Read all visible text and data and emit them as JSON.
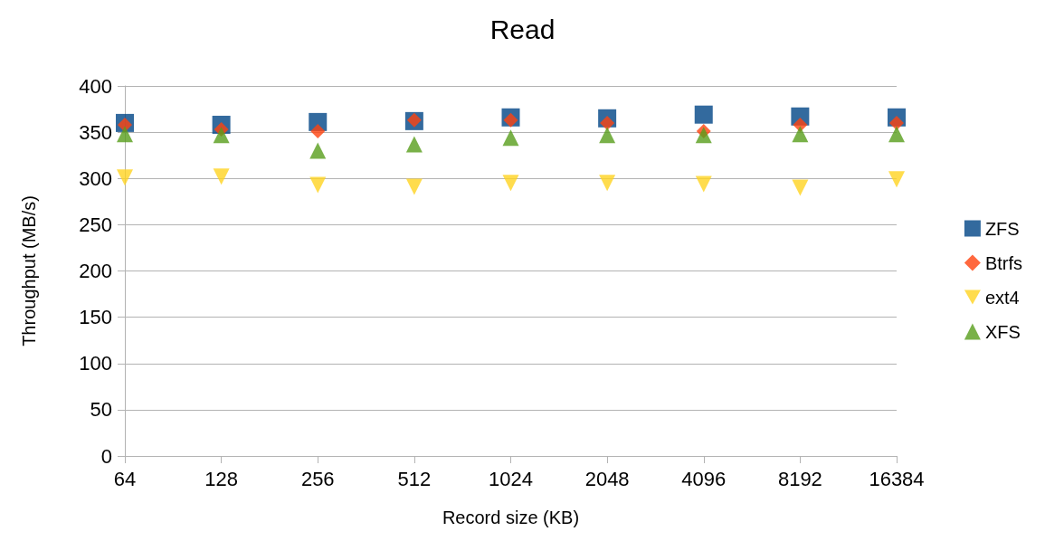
{
  "chart_data": {
    "type": "scatter",
    "title": "Read",
    "xlabel": "Record size (KB)",
    "ylabel": "Throughput (MB/s)",
    "categories": [
      "64",
      "128",
      "256",
      "512",
      "1024",
      "2048",
      "4096",
      "8192",
      "16384"
    ],
    "series": [
      {
        "name": "ZFS",
        "color": "#004586",
        "marker": "square",
        "values": [
          360,
          358,
          361,
          362,
          366,
          365,
          369,
          367,
          366
        ]
      },
      {
        "name": "Btrfs",
        "color": "#ff420e",
        "marker": "diamond",
        "values": [
          358,
          353,
          351,
          363,
          363,
          360,
          351,
          358,
          360
        ]
      },
      {
        "name": "ext4",
        "color": "#ffd320",
        "marker": "triangle-down",
        "values": [
          301,
          302,
          293,
          291,
          295,
          295,
          294,
          290,
          299
        ]
      },
      {
        "name": "XFS",
        "color": "#579d1c",
        "marker": "triangle",
        "values": [
          348,
          347,
          330,
          337,
          344,
          347,
          347,
          348,
          348
        ]
      }
    ],
    "ylim": [
      0,
      400
    ],
    "yticks": [
      0,
      50,
      100,
      150,
      200,
      250,
      300,
      350,
      400
    ],
    "grid": "y",
    "legend": "right"
  }
}
